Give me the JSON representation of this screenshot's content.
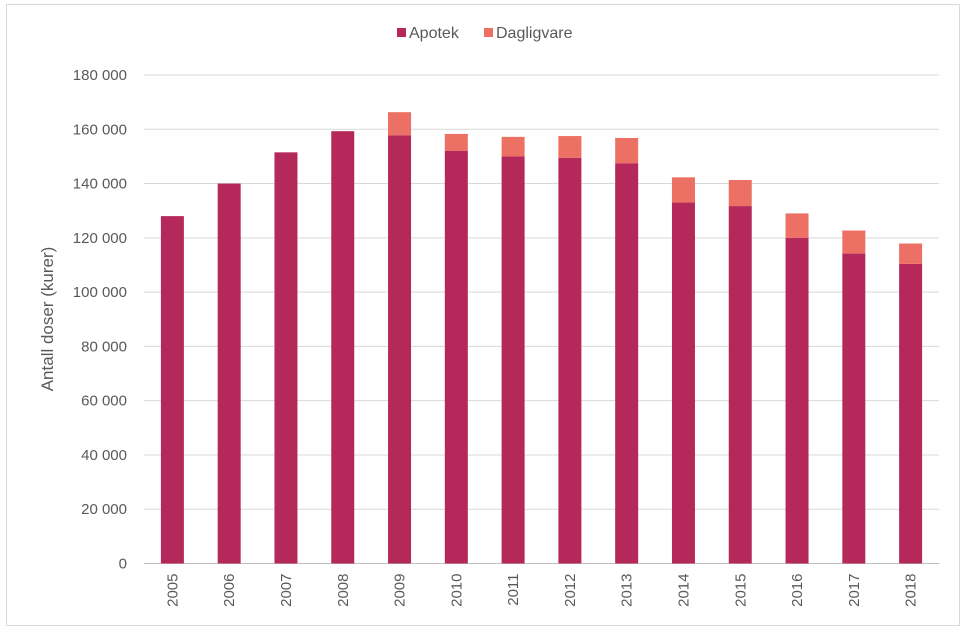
{
  "chart_data": {
    "type": "bar",
    "stacked": true,
    "title": "",
    "xlabel": "",
    "ylabel": "Antall doser (kurer)",
    "ylim": [
      0,
      180000
    ],
    "yticks": [
      0,
      20000,
      40000,
      60000,
      80000,
      100000,
      120000,
      140000,
      160000,
      180000
    ],
    "ytick_labels": [
      "0",
      "20 000",
      "40 000",
      "60 000",
      "80 000",
      "100 000",
      "120 000",
      "140 000",
      "160 000",
      "180 000"
    ],
    "grid": true,
    "legend_position": "top-center",
    "categories": [
      "2005",
      "2006",
      "2007",
      "2008",
      "2009",
      "2010",
      "2011",
      "2012",
      "2013",
      "2014",
      "2015",
      "2016",
      "2017",
      "2018"
    ],
    "series": [
      {
        "name": "Apotek",
        "color": "#B5295A",
        "values": [
          128000,
          140000,
          151500,
          159300,
          157800,
          152000,
          150000,
          149500,
          147500,
          133000,
          131700,
          120000,
          114200,
          110400
        ]
      },
      {
        "name": "Dagligvare",
        "color": "#EC7063",
        "values": [
          0,
          0,
          0,
          0,
          8500,
          6300,
          7200,
          8000,
          9300,
          9300,
          9600,
          9000,
          8500,
          7500
        ]
      }
    ]
  }
}
